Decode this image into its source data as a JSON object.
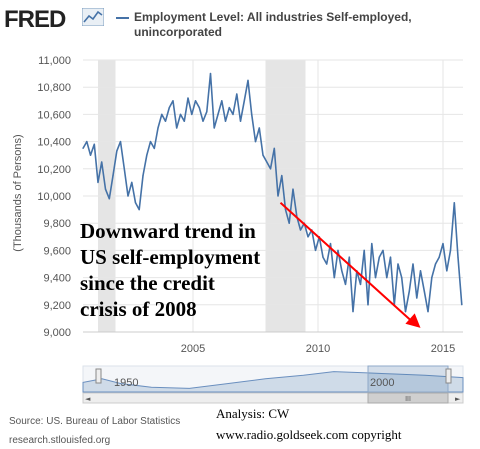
{
  "header": {
    "brand": "FRED",
    "brand_icon": "line-chart-icon",
    "legend_label": "Employment Level: All industries Self-employed, unincorporated"
  },
  "colors": {
    "series": "#4572a7",
    "recession": "#e5e5e5",
    "trend_arrow": "#ff0000",
    "navigator_fill": "#cfdbe8"
  },
  "chart_data": {
    "type": "line",
    "title": "Employment Level: All industries Self-employed, unincorporated",
    "ylabel": "(Thousands of Persons)",
    "xlabel": "",
    "xlim": [
      2000.6,
      2015.8
    ],
    "ylim": [
      9000,
      11000
    ],
    "y_ticks": [
      9000,
      9200,
      9400,
      9600,
      9800,
      10000,
      10200,
      10400,
      10600,
      10800,
      11000
    ],
    "y_tick_labels": [
      "9,000",
      "9,200",
      "9,400",
      "9,600",
      "9,800",
      "10,000",
      "10,200",
      "10,400",
      "10,600",
      "10,800",
      "11,000"
    ],
    "x_ticks": [
      2005,
      2010,
      2015
    ],
    "x_tick_labels": [
      "2005",
      "2010",
      "2015"
    ],
    "grid": true,
    "recession_bands": [
      [
        2001.2,
        2001.9
      ],
      [
        2007.9,
        2009.5
      ]
    ],
    "series": [
      {
        "name": "Employment Level: All industries Self-employed, unincorporated",
        "x": [
          2000.6,
          2000.75,
          2000.9,
          2001.05,
          2001.2,
          2001.35,
          2001.5,
          2001.65,
          2001.8,
          2001.95,
          2002.1,
          2002.25,
          2002.4,
          2002.55,
          2002.7,
          2002.85,
          2003.0,
          2003.15,
          2003.3,
          2003.45,
          2003.6,
          2003.75,
          2003.9,
          2004.05,
          2004.2,
          2004.35,
          2004.5,
          2004.65,
          2004.8,
          2004.95,
          2005.1,
          2005.25,
          2005.4,
          2005.55,
          2005.7,
          2005.85,
          2006.0,
          2006.15,
          2006.3,
          2006.45,
          2006.6,
          2006.75,
          2006.9,
          2007.05,
          2007.2,
          2007.35,
          2007.5,
          2007.65,
          2007.8,
          2007.95,
          2008.1,
          2008.25,
          2008.4,
          2008.55,
          2008.7,
          2008.85,
          2009.0,
          2009.15,
          2009.3,
          2009.45,
          2009.6,
          2009.75,
          2009.9,
          2010.05,
          2010.2,
          2010.35,
          2010.5,
          2010.65,
          2010.8,
          2010.95,
          2011.1,
          2011.25,
          2011.4,
          2011.55,
          2011.7,
          2011.85,
          2012.0,
          2012.15,
          2012.3,
          2012.45,
          2012.6,
          2012.75,
          2012.9,
          2013.05,
          2013.2,
          2013.35,
          2013.5,
          2013.65,
          2013.8,
          2013.95,
          2014.1,
          2014.25,
          2014.4,
          2014.55,
          2014.7,
          2014.85,
          2015.0,
          2015.15,
          2015.3,
          2015.45,
          2015.6,
          2015.75
        ],
        "values": [
          10350,
          10400,
          10300,
          10380,
          10100,
          10250,
          10050,
          9980,
          10150,
          10330,
          10400,
          10200,
          10000,
          10100,
          9950,
          9900,
          10150,
          10300,
          10400,
          10350,
          10500,
          10600,
          10550,
          10650,
          10700,
          10500,
          10600,
          10550,
          10720,
          10600,
          10700,
          10650,
          10550,
          10620,
          10900,
          10500,
          10600,
          10700,
          10550,
          10650,
          10600,
          10750,
          10550,
          10700,
          10850,
          10600,
          10400,
          10500,
          10300,
          10250,
          10200,
          10350,
          10000,
          10150,
          9900,
          9800,
          10050,
          9850,
          9750,
          9800,
          9700,
          9750,
          9600,
          9700,
          9550,
          9500,
          9650,
          9400,
          9600,
          9450,
          9350,
          9550,
          9150,
          9450,
          9350,
          9600,
          9200,
          9650,
          9400,
          9550,
          9600,
          9400,
          9550,
          9200,
          9500,
          9400,
          9150,
          9300,
          9500,
          9250,
          9450,
          9300,
          9150,
          9400,
          9500,
          9550,
          9650,
          9450,
          9600,
          9950,
          9550,
          9200
        ]
      }
    ],
    "trend_arrow": {
      "from": [
        2008.5,
        9950
      ],
      "to": [
        2014.1,
        9030
      ]
    },
    "annotation": "Downward trend in\nUS self-employment\nsince the credit\ncrisis of 2008"
  },
  "navigator": {
    "labels": [
      "1950",
      "2000"
    ],
    "scrollbar_glyph": "III",
    "left_arrow": "◄",
    "right_arrow": "►"
  },
  "footer": {
    "source": "Source: US. Bureau of Labor Statistics",
    "url": "research.stlouisfed.org",
    "analysis": "Analysis: CW",
    "credit": "www.radio.goldseek.com copyright"
  }
}
